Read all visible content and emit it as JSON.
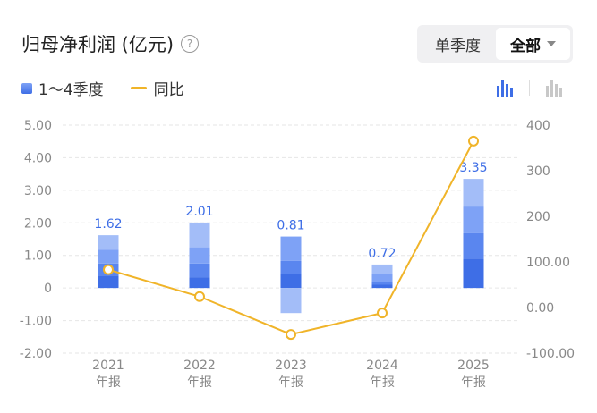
{
  "header": {
    "title": "归母净利润 (亿元)",
    "help_icon": "question-circle-icon"
  },
  "period_selector": {
    "options": [
      "单季度",
      "全部"
    ],
    "selected": "全部",
    "dropdown_icon": "caret-down-icon"
  },
  "legend": {
    "bar_label": "1～4季度",
    "line_label": "同比"
  },
  "chart_type_toggle": {
    "options": [
      "bar-stacked-icon",
      "bar-grouped-icon"
    ],
    "selected": "bar-stacked-icon"
  },
  "colors": {
    "q1": "#3e6ee6",
    "q2": "#5a86ef",
    "q3": "#7ea2f6",
    "q4": "#a3bdf8",
    "line": "#f0b429",
    "label": "#3e6ee6",
    "axis_text": "#888888",
    "grid": "#e6e6e6"
  },
  "chart_data": {
    "type": "bar",
    "categories": [
      "2021\n年报",
      "2022\n年报",
      "2023\n年报",
      "2024\n年报",
      "2025\n年报"
    ],
    "series": [
      {
        "name": "Q1",
        "values": [
          0.38,
          0.33,
          0.42,
          0.1,
          0.9
        ]
      },
      {
        "name": "Q2",
        "values": [
          0.37,
          0.42,
          0.41,
          0.09,
          0.78
        ]
      },
      {
        "name": "Q3",
        "values": [
          0.42,
          0.5,
          0.75,
          0.23,
          0.82
        ]
      },
      {
        "name": "Q4",
        "values": [
          0.45,
          0.76,
          -0.77,
          0.3,
          0.85
        ]
      }
    ],
    "totals": [
      1.62,
      2.01,
      0.81,
      0.72,
      3.35
    ],
    "total_labels": [
      "1.62",
      "2.01",
      "0.81",
      "0.72",
      "3.35"
    ],
    "line_series": {
      "name": "同比",
      "values": [
        83,
        24,
        -59,
        -12,
        365
      ]
    },
    "y_left": {
      "ticks": [
        "5.00",
        "4.00",
        "3.00",
        "2.00",
        "1.00",
        "0",
        "-1.00",
        "-2.00"
      ],
      "range": [
        -2,
        5
      ]
    },
    "y_right": {
      "ticks": [
        "400",
        "300",
        "200",
        "100.00",
        "0.00",
        "-100.00"
      ],
      "range": [
        -100,
        400
      ]
    },
    "grid": true
  }
}
